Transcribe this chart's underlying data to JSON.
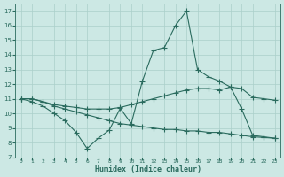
{
  "xlabel": "Humidex (Indice chaleur)",
  "background_color": "#cce8e4",
  "grid_color": "#aacfca",
  "line_color": "#2a6b5e",
  "xlim": [
    -0.5,
    23.5
  ],
  "ylim": [
    7,
    17.5
  ],
  "yticks": [
    7,
    8,
    9,
    10,
    11,
    12,
    13,
    14,
    15,
    16,
    17
  ],
  "xticks": [
    0,
    1,
    2,
    3,
    4,
    5,
    6,
    7,
    8,
    9,
    10,
    11,
    12,
    13,
    14,
    15,
    16,
    17,
    18,
    19,
    20,
    21,
    22,
    23
  ],
  "line1_x": [
    0,
    1,
    2,
    3,
    4,
    5,
    6,
    7,
    8,
    9,
    10,
    11,
    12,
    13,
    14,
    15,
    16,
    17,
    18,
    19,
    20,
    21,
    22,
    23
  ],
  "line1_y": [
    11.0,
    10.8,
    10.5,
    10.0,
    9.5,
    8.7,
    7.6,
    8.3,
    8.85,
    10.35,
    9.3,
    12.2,
    14.3,
    14.5,
    16.0,
    17.0,
    13.0,
    12.5,
    12.2,
    11.8,
    10.3,
    8.5,
    8.4,
    8.3
  ],
  "line2_x": [
    0,
    1,
    2,
    3,
    4,
    5,
    6,
    7,
    8,
    9,
    10,
    11,
    12,
    13,
    14,
    15,
    16,
    17,
    18,
    19,
    20,
    21,
    22,
    23
  ],
  "line2_y": [
    11.0,
    11.0,
    10.8,
    10.6,
    10.5,
    10.4,
    10.3,
    10.3,
    10.3,
    10.4,
    10.6,
    10.8,
    11.0,
    11.2,
    11.4,
    11.6,
    11.7,
    11.7,
    11.6,
    11.8,
    11.7,
    11.1,
    11.0,
    10.9
  ],
  "line3_x": [
    0,
    1,
    2,
    3,
    4,
    5,
    6,
    7,
    8,
    9,
    10,
    11,
    12,
    13,
    14,
    15,
    16,
    17,
    18,
    19,
    20,
    21,
    22,
    23
  ],
  "line3_y": [
    11.0,
    11.0,
    10.8,
    10.5,
    10.3,
    10.1,
    9.9,
    9.7,
    9.5,
    9.3,
    9.2,
    9.1,
    9.0,
    8.9,
    8.9,
    8.8,
    8.8,
    8.7,
    8.7,
    8.6,
    8.5,
    8.4,
    8.35,
    8.3
  ]
}
